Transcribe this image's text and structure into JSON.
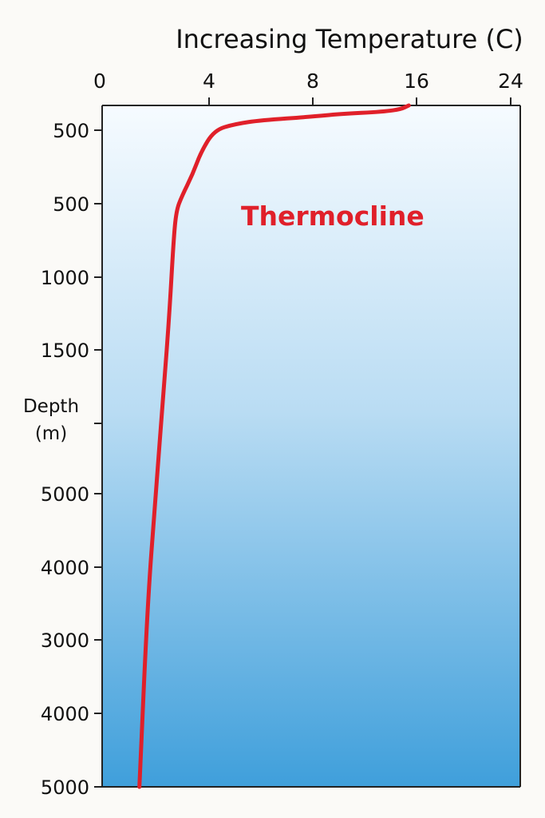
{
  "chart_data": {
    "type": "line",
    "title": "Increasing Temperature (C)",
    "xlabel": "",
    "ylabel": [
      "Depth",
      "(m)"
    ],
    "x_tick_labels": [
      "0",
      "4",
      "8",
      "16",
      "24"
    ],
    "y_tick_labels": [
      "500",
      "500",
      "1000",
      "1500",
      "",
      "5000",
      "4000",
      "3000",
      "4000",
      "5000"
    ],
    "annotations": [
      {
        "text": "Thermocline"
      }
    ],
    "series": [
      {
        "color": "#e0202a",
        "points": [
          {
            "temp_axis": 15.4,
            "depth_axis_position": 0.0
          },
          {
            "temp_axis": 14.8,
            "depth_axis_position": 0.15
          },
          {
            "temp_axis": 13.5,
            "depth_axis_position": 0.25
          },
          {
            "temp_axis": 10.0,
            "depth_axis_position": 0.35
          },
          {
            "temp_axis": 8.0,
            "depth_axis_position": 0.45
          },
          {
            "temp_axis": 6.0,
            "depth_axis_position": 0.6
          },
          {
            "temp_axis": 5.0,
            "depth_axis_position": 0.75
          },
          {
            "temp_axis": 4.2,
            "depth_axis_position": 1.0
          },
          {
            "temp_axis": 3.7,
            "depth_axis_position": 1.3
          },
          {
            "temp_axis": 3.4,
            "depth_axis_position": 1.6
          },
          {
            "temp_axis": 3.0,
            "depth_axis_position": 1.9
          },
          {
            "temp_axis": 2.8,
            "depth_axis_position": 2.1
          },
          {
            "temp_axis": 2.7,
            "depth_axis_position": 2.5
          },
          {
            "temp_axis": 2.55,
            "depth_axis_position": 3.5
          },
          {
            "temp_axis": 2.35,
            "depth_axis_position": 4.5
          },
          {
            "temp_axis": 2.05,
            "depth_axis_position": 6.0
          },
          {
            "temp_axis": 1.75,
            "depth_axis_position": 7.5
          },
          {
            "temp_axis": 1.45,
            "depth_axis_position": 9.0
          }
        ]
      }
    ],
    "background_gradient": [
      "#f6fbff",
      "#b9dcf3",
      "#3f9fdb"
    ],
    "grid": false
  }
}
